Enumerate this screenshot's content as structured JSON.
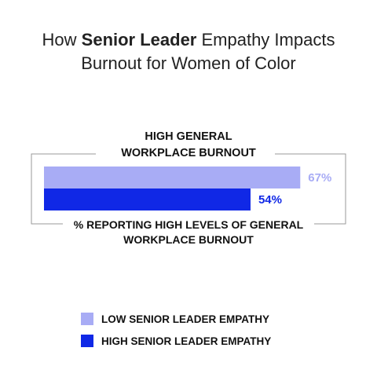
{
  "title": {
    "part1": "How ",
    "bold": "Senior Leader",
    "part2": " Empathy Impacts",
    "line2": "Burnout for Women of Color"
  },
  "colors": {
    "low": "#a8acf5",
    "high": "#1028e6",
    "frame": "#9a9a9a"
  },
  "chart_data": {
    "type": "bar",
    "orientation": "horizontal",
    "title": "How Senior Leader Empathy Impacts Burnout for Women of Color",
    "categories": [
      "HIGH GENERAL WORKPLACE BURNOUT"
    ],
    "series": [
      {
        "name": "LOW SENIOR LEADER EMPATHY",
        "values": [
          67
        ],
        "label": "67%"
      },
      {
        "name": "HIGH SENIOR LEADER EMPATHY",
        "values": [
          54
        ],
        "label": "54%"
      }
    ],
    "xlabel": "% REPORTING HIGH LEVELS OF GENERAL WORKPLACE BURNOUT",
    "xlim": [
      0,
      100
    ],
    "legend": "bottom"
  },
  "category_label": {
    "line1": "HIGH GENERAL",
    "line2": "WORKPLACE BURNOUT"
  },
  "axis_label": {
    "line1": "% REPORTING HIGH LEVELS OF GENERAL",
    "line2": "WORKPLACE BURNOUT"
  },
  "legend": [
    {
      "label": "LOW SENIOR LEADER EMPATHY",
      "color": "#a8acf5"
    },
    {
      "label": "HIGH SENIOR LEADER EMPATHY",
      "color": "#1028e6"
    }
  ]
}
